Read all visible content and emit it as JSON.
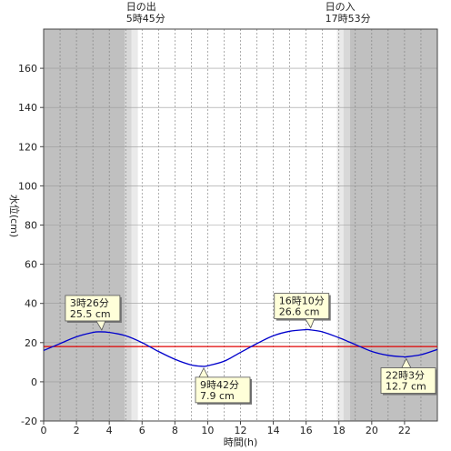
{
  "chart_data": {
    "type": "line",
    "title": "",
    "xlabel": "時間(h)",
    "ylabel": "水位(cm)",
    "xlim": [
      0,
      24
    ],
    "ylim": [
      -20,
      180
    ],
    "x_ticks": [
      "0",
      "2",
      "4",
      "6",
      "8",
      "10",
      "12",
      "14",
      "16",
      "18",
      "20",
      "22"
    ],
    "y_ticks": [
      "-20",
      "0",
      "20",
      "40",
      "60",
      "80",
      "100",
      "120",
      "140",
      "160"
    ],
    "grid": true,
    "colors": {
      "night": "#c0c0c0",
      "twilight_dark": "#d8d8d8",
      "twilight_light": "#eaeaea",
      "day": "#ffffff",
      "tide_line": "#0000cc",
      "mean_line": "#e00000",
      "annotation_bg": "#ffffd9"
    },
    "reference_line": {
      "y": 18
    },
    "sun": {
      "sunrise": {
        "title": "日の出",
        "time": "5時45分",
        "x": 5.75
      },
      "sunset": {
        "title": "日の入",
        "time": "17時53分",
        "x": 17.88
      }
    },
    "series": [
      {
        "x": [
          0,
          1,
          2,
          3,
          3.43,
          4,
          5,
          6,
          7,
          8,
          9,
          9.7,
          10,
          11,
          12,
          13,
          14,
          15,
          16,
          16.17,
          17,
          18,
          19,
          20,
          21,
          22,
          22.05,
          23,
          24
        ],
        "values": [
          16,
          19.5,
          23,
          25.2,
          25.5,
          25.2,
          23.5,
          20,
          15.5,
          11.5,
          8.6,
          7.9,
          8.2,
          10.5,
          15,
          19.5,
          23.5,
          25.8,
          26.6,
          26.6,
          25.5,
          22.5,
          19,
          15.5,
          13.5,
          12.7,
          12.7,
          13.8,
          16.5
        ]
      }
    ],
    "annotations": [
      {
        "time": "3時26分",
        "level": "25.5 cm",
        "x": 3.43,
        "y": 25.5
      },
      {
        "time": "9時42分",
        "level": "7.9 cm",
        "x": 9.7,
        "y": 7.9
      },
      {
        "time": "16時10分",
        "level": "26.6 cm",
        "x": 16.17,
        "y": 26.6
      },
      {
        "time": "22時3分",
        "level": "12.7 cm",
        "x": 22.05,
        "y": 12.7
      }
    ]
  }
}
